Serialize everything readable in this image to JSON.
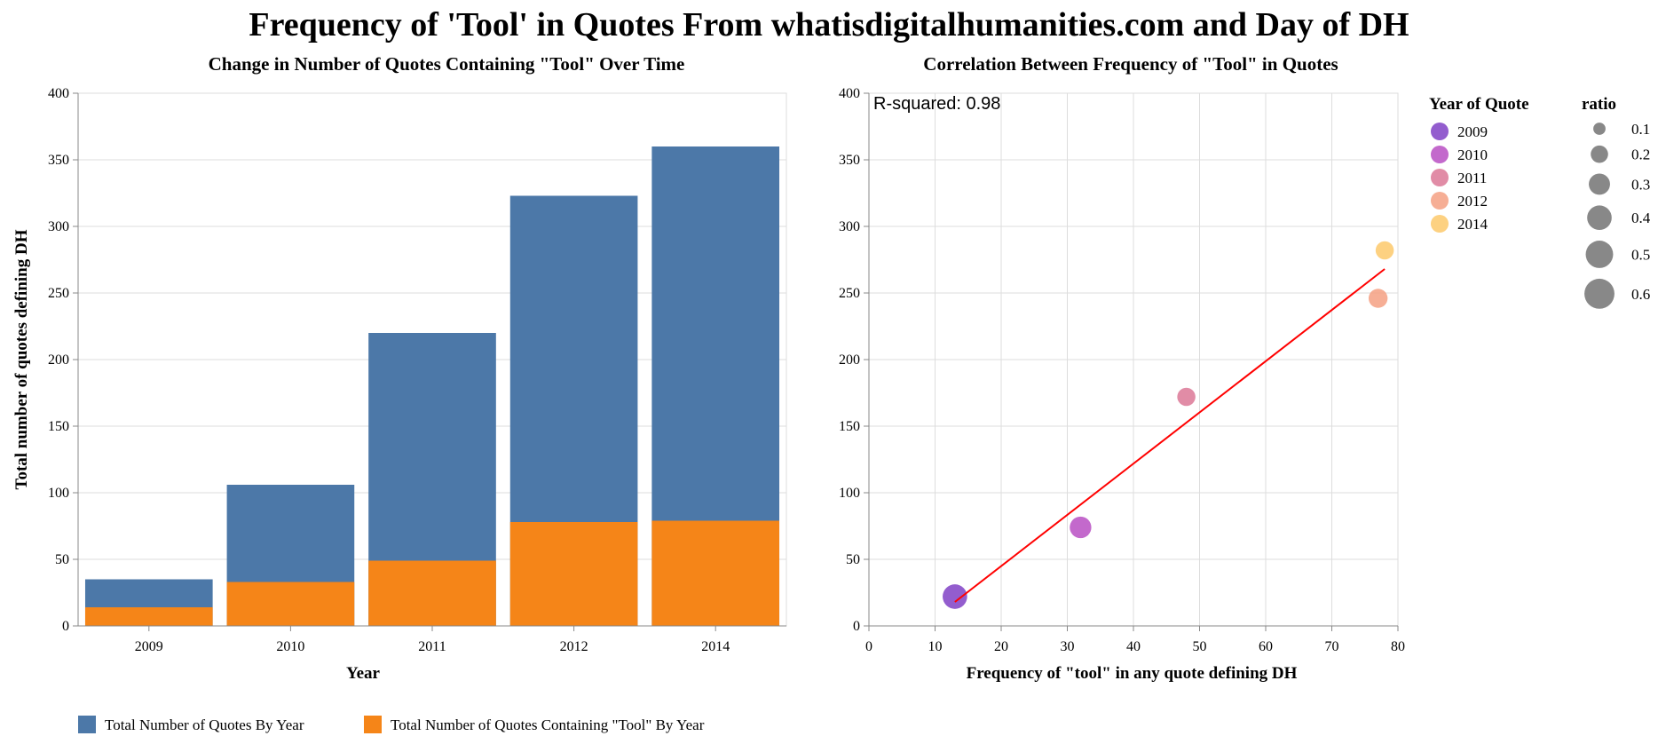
{
  "title": "Frequency of 'Tool' in Quotes From whatisdigitalhumanities.com and Day of DH",
  "chart_data": [
    {
      "type": "bar",
      "stacking": "overlay",
      "title": "Change in Number of Quotes Containing \"Tool\" Over Time",
      "xlabel": "Year",
      "ylabel": "Total number of quotes defining DH",
      "ylim": [
        0,
        400
      ],
      "yticks": [
        0,
        50,
        100,
        150,
        200,
        250,
        300,
        350,
        400
      ],
      "categories": [
        "2009",
        "2010",
        "2011",
        "2012",
        "2014"
      ],
      "series": [
        {
          "name": "Total Number of Quotes By Year",
          "color": "#4c78a8",
          "values": [
            35,
            106,
            220,
            323,
            360
          ]
        },
        {
          "name": "Total Number of Quotes Containing \"Tool\" By Year",
          "color": "#f58518",
          "values": [
            14,
            33,
            49,
            78,
            79
          ]
        }
      ],
      "legend_position": "bottom",
      "grid": true
    },
    {
      "type": "scatter",
      "title": "Correlation Between Frequency of \"Tool\" in Quotes",
      "xlabel": "Frequency of \"tool\" in any quote defining DH",
      "ylabel": "",
      "xlim": [
        0,
        80
      ],
      "ylim": [
        0,
        400
      ],
      "xticks": [
        0,
        10,
        20,
        30,
        40,
        50,
        60,
        70,
        80
      ],
      "yticks": [
        0,
        50,
        100,
        150,
        200,
        250,
        300,
        350,
        400
      ],
      "annotation": "R-squared: 0.98",
      "points": [
        {
          "year": "2009",
          "x": 13,
          "y": 22,
          "ratio": 0.4,
          "color": "#8041c6"
        },
        {
          "year": "2010",
          "x": 32,
          "y": 74,
          "ratio": 0.31,
          "color": "#b94fc3"
        },
        {
          "year": "2011",
          "x": 48,
          "y": 172,
          "ratio": 0.22,
          "color": "#dc7896"
        },
        {
          "year": "2012",
          "x": 77,
          "y": 246,
          "ratio": 0.24,
          "color": "#f4a082"
        },
        {
          "year": "2014",
          "x": 78,
          "y": 282,
          "ratio": 0.22,
          "color": "#fdc96b"
        }
      ],
      "trendline": {
        "x": [
          13,
          78
        ],
        "y": [
          18,
          268
        ],
        "color": "#ff0000"
      },
      "legends": {
        "color": {
          "title": "Year of Quote",
          "items": [
            {
              "label": "2009",
              "color": "#8041c6"
            },
            {
              "label": "2010",
              "color": "#b94fc3"
            },
            {
              "label": "2011",
              "color": "#dc7896"
            },
            {
              "label": "2012",
              "color": "#f4a082"
            },
            {
              "label": "2014",
              "color": "#fdc96b"
            }
          ]
        },
        "size": {
          "title": "ratio",
          "items": [
            {
              "label": "0.1",
              "value": 0.1
            },
            {
              "label": "0.2",
              "value": 0.2
            },
            {
              "label": "0.3",
              "value": 0.3
            },
            {
              "label": "0.4",
              "value": 0.4
            },
            {
              "label": "0.5",
              "value": 0.5
            },
            {
              "label": "0.6",
              "value": 0.6
            }
          ],
          "color": "#888888"
        }
      },
      "grid": true
    }
  ]
}
